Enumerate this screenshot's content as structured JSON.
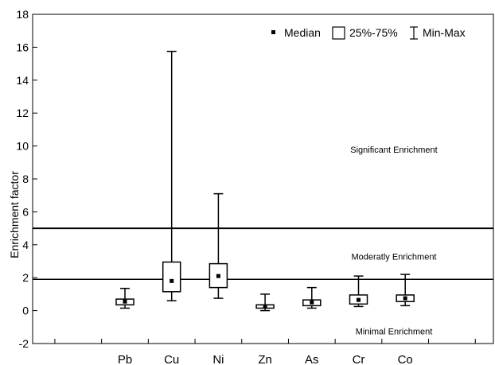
{
  "chart_data": {
    "type": "box",
    "ylabel": "Enrichment factor",
    "ylim": [
      -2,
      18
    ],
    "yticks": [
      -2,
      0,
      2,
      4,
      6,
      8,
      10,
      12,
      14,
      16,
      18
    ],
    "categories": [
      "Pb",
      "Cu",
      "Ni",
      "Zn",
      "As",
      "Cr",
      "Co"
    ],
    "series": [
      {
        "category": "Pb",
        "min": 0.15,
        "q1": 0.35,
        "median": 0.55,
        "q3": 0.7,
        "max": 1.35
      },
      {
        "category": "Cu",
        "min": 0.6,
        "q1": 1.15,
        "median": 1.8,
        "q3": 2.95,
        "max": 15.75
      },
      {
        "category": "Ni",
        "min": 0.75,
        "q1": 1.4,
        "median": 2.1,
        "q3": 2.85,
        "max": 7.1
      },
      {
        "category": "Zn",
        "min": 0.0,
        "q1": 0.15,
        "median": 0.25,
        "q3": 0.35,
        "max": 1.0
      },
      {
        "category": "As",
        "min": 0.15,
        "q1": 0.3,
        "median": 0.5,
        "q3": 0.65,
        "max": 1.4
      },
      {
        "category": "Cr",
        "min": 0.25,
        "q1": 0.4,
        "median": 0.65,
        "q3": 0.95,
        "max": 2.1
      },
      {
        "category": "Co",
        "min": 0.3,
        "q1": 0.55,
        "median": 0.75,
        "q3": 0.95,
        "max": 2.2
      }
    ],
    "threshold_lines": [
      {
        "y": 5,
        "label": "Significant Enrichment",
        "label_y": 9.6
      },
      {
        "y": 1.9,
        "label": "Moderatly  Enrichment",
        "label_y": 3.1
      }
    ],
    "bottom_annotation": {
      "label": "Minimal Enrichment",
      "label_y": -1.45
    },
    "legend": {
      "placement": "top-right",
      "median": "Median",
      "box": "25%-75%",
      "whisker": "Min-Max"
    }
  }
}
